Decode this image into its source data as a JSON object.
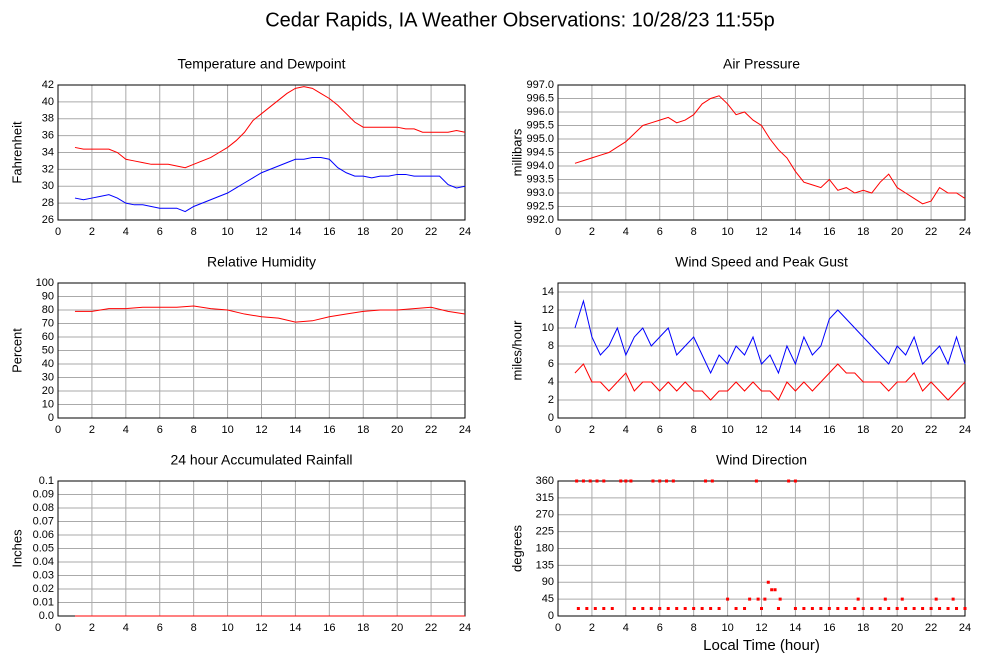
{
  "title": "Cedar Rapids, IA Weather Observations: 10/28/23 11:55p",
  "chart_data": [
    {
      "type": "line",
      "title": "Temperature and Dewpoint",
      "ylabel": "Fahrenheit",
      "x": [
        1,
        1.5,
        2,
        2.5,
        3,
        3.5,
        4,
        4.5,
        5,
        5.5,
        6,
        6.5,
        7,
        7.5,
        8,
        8.5,
        9,
        9.5,
        10,
        10.5,
        11,
        11.5,
        12,
        12.5,
        13,
        13.5,
        14,
        14.5,
        15,
        15.5,
        16,
        16.5,
        17,
        17.5,
        18,
        18.5,
        19,
        19.5,
        20,
        20.5,
        21,
        21.5,
        22,
        22.5,
        23,
        23.5,
        24
      ],
      "series": [
        {
          "color": "#ff0000",
          "values": [
            34.6,
            34.4,
            34.4,
            34.4,
            34.4,
            34.0,
            33.2,
            33.0,
            32.8,
            32.6,
            32.6,
            32.6,
            32.4,
            32.2,
            32.6,
            33.0,
            33.4,
            34.0,
            34.6,
            35.4,
            36.4,
            37.8,
            38.6,
            39.4,
            40.2,
            41.0,
            41.6,
            41.8,
            41.6,
            41.0,
            40.4,
            39.6,
            38.6,
            37.6,
            37.0,
            37.0,
            37.0,
            37.0,
            37.0,
            36.8,
            36.8,
            36.4,
            36.4,
            36.4,
            36.4,
            36.6,
            36.4
          ]
        },
        {
          "color": "#0000ff",
          "values": [
            28.6,
            28.4,
            28.6,
            28.8,
            29.0,
            28.6,
            28.0,
            27.8,
            27.8,
            27.6,
            27.4,
            27.4,
            27.4,
            27.0,
            27.6,
            28.0,
            28.4,
            28.8,
            29.2,
            29.8,
            30.4,
            31.0,
            31.6,
            32.0,
            32.4,
            32.8,
            33.2,
            33.2,
            33.4,
            33.4,
            33.2,
            32.2,
            31.6,
            31.2,
            31.2,
            31.0,
            31.2,
            31.2,
            31.4,
            31.4,
            31.2,
            31.2,
            31.2,
            31.2,
            30.2,
            29.8,
            30.0
          ]
        }
      ],
      "xlim": [
        0,
        24
      ],
      "xticks": [
        0,
        2,
        4,
        6,
        8,
        10,
        12,
        14,
        16,
        18,
        20,
        22,
        24
      ],
      "ylim": [
        26,
        42
      ],
      "yticks": [
        26,
        28,
        30,
        32,
        34,
        36,
        38,
        40,
        42
      ],
      "grid": true
    },
    {
      "type": "line",
      "title": "Air Pressure",
      "ylabel": "millibars",
      "x": [
        1,
        1.5,
        2,
        2.5,
        3,
        3.5,
        4,
        4.5,
        5,
        5.5,
        6,
        6.5,
        7,
        7.5,
        8,
        8.5,
        9,
        9.5,
        10,
        10.5,
        11,
        11.5,
        12,
        12.5,
        13,
        13.5,
        14,
        14.5,
        15,
        15.5,
        16,
        16.5,
        17,
        17.5,
        18,
        18.5,
        19,
        19.5,
        20,
        20.5,
        21,
        21.5,
        22,
        22.5,
        23,
        23.5,
        24
      ],
      "series": [
        {
          "color": "#ff0000",
          "values": [
            994.1,
            994.2,
            994.3,
            994.4,
            994.5,
            994.7,
            994.9,
            995.2,
            995.5,
            995.6,
            995.7,
            995.8,
            995.6,
            995.7,
            995.9,
            996.3,
            996.5,
            996.6,
            996.3,
            995.9,
            996.0,
            995.7,
            995.5,
            995.0,
            994.6,
            994.3,
            993.8,
            993.4,
            993.3,
            993.2,
            993.5,
            993.1,
            993.2,
            993.0,
            993.1,
            993.0,
            993.4,
            993.7,
            993.2,
            993.0,
            992.8,
            992.6,
            992.7,
            993.2,
            993.0,
            993.0,
            992.8
          ]
        }
      ],
      "xlim": [
        0,
        24
      ],
      "xticks": [
        0,
        2,
        4,
        6,
        8,
        10,
        12,
        14,
        16,
        18,
        20,
        22,
        24
      ],
      "ylim": [
        992,
        997
      ],
      "yticks": [
        {
          "value": 992,
          "label": "992.0"
        },
        992.5,
        {
          "value": 993,
          "label": "993.0"
        },
        993.5,
        {
          "value": 994,
          "label": "994.0"
        },
        994.5,
        {
          "value": 995,
          "label": "995.0"
        },
        995.5,
        {
          "value": 996,
          "label": "996.0"
        },
        996.5,
        {
          "value": 997,
          "label": "997.0"
        }
      ],
      "grid": true
    },
    {
      "type": "line",
      "title": "Relative Humidity",
      "ylabel": "Percent",
      "x": [
        1,
        2,
        3,
        4,
        5,
        6,
        7,
        8,
        9,
        10,
        11,
        12,
        13,
        14,
        15,
        16,
        17,
        18,
        19,
        20,
        21,
        22,
        23,
        24
      ],
      "series": [
        {
          "color": "#ff0000",
          "values": [
            79,
            79,
            81,
            81,
            82,
            82,
            82,
            83,
            81,
            80,
            77,
            75,
            74,
            71,
            72,
            75,
            77,
            79,
            80,
            80,
            81,
            82,
            79,
            77
          ]
        }
      ],
      "xlim": [
        0,
        24
      ],
      "xticks": [
        0,
        2,
        4,
        6,
        8,
        10,
        12,
        14,
        16,
        18,
        20,
        22,
        24
      ],
      "ylim": [
        0,
        100
      ],
      "yticks": [
        0,
        10,
        20,
        30,
        40,
        50,
        60,
        70,
        80,
        90,
        100
      ],
      "grid": true
    },
    {
      "type": "line",
      "title": "Wind Speed and Peak Gust",
      "ylabel": "miles/hour",
      "x": [
        1,
        1.5,
        2,
        2.5,
        3,
        3.5,
        4,
        4.5,
        5,
        5.5,
        6,
        6.5,
        7,
        7.5,
        8,
        8.5,
        9,
        9.5,
        10,
        10.5,
        11,
        11.5,
        12,
        12.5,
        13,
        13.5,
        14,
        14.5,
        15,
        15.5,
        16,
        16.5,
        17,
        17.5,
        18,
        18.5,
        19,
        19.5,
        20,
        20.5,
        21,
        21.5,
        22,
        22.5,
        23,
        23.5,
        24
      ],
      "series": [
        {
          "color": "#0000ff",
          "values": [
            10,
            13,
            9,
            7,
            8,
            10,
            7,
            9,
            10,
            8,
            9,
            10,
            7,
            8,
            9,
            7,
            5,
            7,
            6,
            8,
            7,
            9,
            6,
            7,
            5,
            8,
            6,
            9,
            7,
            8,
            11,
            12,
            11,
            10,
            9,
            8,
            7,
            6,
            8,
            7,
            9,
            6,
            7,
            8,
            6,
            9,
            6
          ]
        },
        {
          "color": "#ff0000",
          "values": [
            5,
            6,
            4,
            4,
            3,
            4,
            5,
            3,
            4,
            4,
            3,
            4,
            3,
            4,
            3,
            3,
            2,
            3,
            3,
            4,
            3,
            4,
            3,
            3,
            2,
            4,
            3,
            4,
            3,
            4,
            5,
            6,
            5,
            5,
            4,
            4,
            4,
            3,
            4,
            4,
            5,
            3,
            4,
            3,
            2,
            3,
            4
          ]
        }
      ],
      "xlim": [
        0,
        24
      ],
      "xticks": [
        0,
        2,
        4,
        6,
        8,
        10,
        12,
        14,
        16,
        18,
        20,
        22,
        24
      ],
      "ylim": [
        0,
        15
      ],
      "yticks": [
        0,
        2,
        4,
        6,
        8,
        10,
        12,
        14
      ],
      "grid": true
    },
    {
      "type": "line",
      "title": "24 hour Accumulated Rainfall",
      "ylabel": "Inches",
      "x": [
        1,
        24
      ],
      "series": [
        {
          "color": "#ff0000",
          "values": [
            0,
            0
          ]
        }
      ],
      "xlim": [
        0,
        24
      ],
      "xticks": [
        0,
        2,
        4,
        6,
        8,
        10,
        12,
        14,
        16,
        18,
        20,
        22,
        24
      ],
      "ylim": [
        0,
        0.1
      ],
      "yticks": [
        {
          "value": 0,
          "label": "0.0"
        },
        0.01,
        0.02,
        0.03,
        0.04,
        0.05,
        0.06,
        0.07,
        0.08,
        0.09,
        0.1
      ],
      "grid": true
    },
    {
      "type": "scatter",
      "title": "Wind Direction",
      "ylabel": "degrees",
      "xlabel": "Local Time (hour)",
      "series": [
        {
          "color": "#ff0000",
          "x": [
            1.1,
            1.5,
            1.9,
            2.3,
            2.7,
            3.7,
            4.0,
            4.3,
            5.6,
            6.0,
            6.4,
            6.8,
            8.7,
            9.1,
            11.7,
            13.6,
            14.0
          ],
          "values": [
            360,
            360,
            360,
            360,
            360,
            360,
            360,
            360,
            360,
            360,
            360,
            360,
            360,
            360,
            360,
            360,
            360
          ]
        },
        {
          "color": "#ff0000",
          "x": [
            1.2,
            1.7,
            2.2,
            2.7,
            3.2,
            4.5,
            5.0,
            5.5,
            6.0,
            6.5,
            7.0,
            7.5,
            8.0,
            8.5,
            9.0,
            9.5,
            10.5,
            11.0,
            12.0,
            13.0,
            14.0,
            14.5,
            15.0,
            15.5,
            16.0,
            16.5,
            17.0,
            17.5,
            18.0,
            18.5,
            19.0,
            19.5,
            20.0,
            20.5,
            21.0,
            21.5,
            22.0,
            22.5,
            23.0,
            23.5,
            24.0
          ],
          "values": [
            20,
            20,
            20,
            20,
            20,
            20,
            20,
            20,
            20,
            20,
            20,
            20,
            20,
            20,
            20,
            20,
            20,
            20,
            20,
            20,
            20,
            20,
            20,
            20,
            20,
            20,
            20,
            20,
            20,
            20,
            20,
            20,
            20,
            20,
            20,
            20,
            20,
            20,
            20,
            20,
            20
          ]
        },
        {
          "color": "#ff0000",
          "x": [
            10.0,
            11.3,
            11.8,
            12.2,
            13.1,
            17.7,
            19.3,
            20.3,
            22.3,
            23.3
          ],
          "values": [
            45,
            45,
            45,
            45,
            45,
            45,
            45,
            45,
            45,
            45
          ]
        },
        {
          "color": "#ff0000",
          "x": [
            12.4,
            12.6,
            12.8
          ],
          "values": [
            90,
            70,
            70
          ]
        }
      ],
      "xlim": [
        0,
        24
      ],
      "xticks": [
        0,
        2,
        4,
        6,
        8,
        10,
        12,
        14,
        16,
        18,
        20,
        22,
        24
      ],
      "ylim": [
        0,
        360
      ],
      "yticks": [
        0,
        45,
        90,
        135,
        180,
        225,
        270,
        315,
        360
      ],
      "grid": true
    }
  ]
}
